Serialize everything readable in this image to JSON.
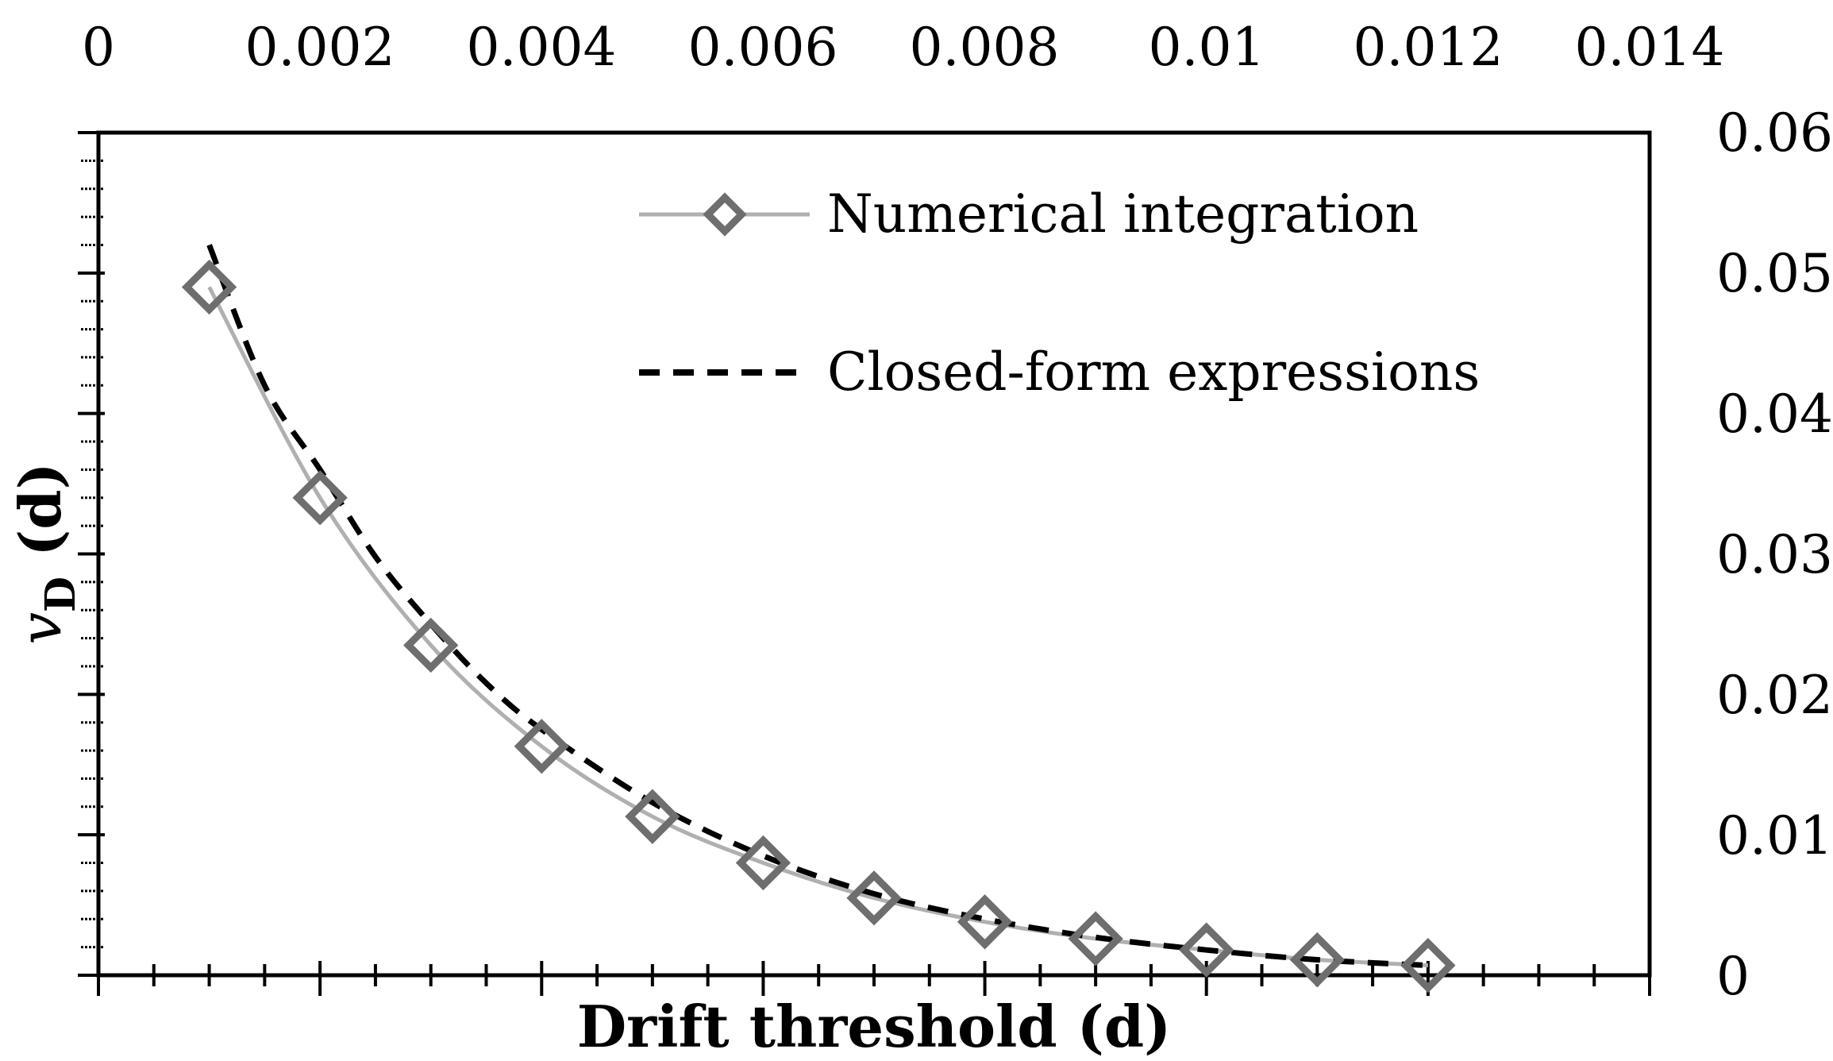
{
  "chart_data": {
    "type": "line",
    "title": "",
    "xlabel": "Drift threshold (d)",
    "ylabel": "v",
    "ylabel_subscript": "D",
    "ylabel_suffix": " (d)",
    "xlim": [
      0,
      0.014
    ],
    "ylim": [
      0,
      0.06
    ],
    "x_tick_labels": [
      "0",
      "0.002",
      "0.004",
      "0.006",
      "0.008",
      "0.01",
      "0.012",
      "0.014"
    ],
    "y_tick_labels": [
      "0",
      "0.01",
      "0.02",
      "0.03",
      "0.04",
      "0.05",
      "0.06"
    ],
    "x_axis_position": "top",
    "y_axis_position": "right",
    "grid": false,
    "legend_position": "top-right",
    "series": [
      {
        "name": "Numerical integration",
        "style": "solid-with-diamond-markers",
        "line_color": "#b0b0b0",
        "marker_color": "#6e6e6e",
        "x": [
          0.001,
          0.002,
          0.003,
          0.004,
          0.005,
          0.006,
          0.007,
          0.008,
          0.009,
          0.01,
          0.011,
          0.012
        ],
        "y": [
          0.049,
          0.034,
          0.0235,
          0.0163,
          0.0113,
          0.008,
          0.0055,
          0.0038,
          0.0026,
          0.0018,
          0.0011,
          0.0007
        ]
      },
      {
        "name": "Closed-form expressions",
        "style": "dashed",
        "line_color": "#000000",
        "x": [
          0.001,
          0.0015,
          0.002,
          0.0025,
          0.003,
          0.0035,
          0.004,
          0.005,
          0.006,
          0.007,
          0.008,
          0.009,
          0.01,
          0.011,
          0.012
        ],
        "y": [
          0.052,
          0.042,
          0.036,
          0.0298,
          0.025,
          0.0208,
          0.0175,
          0.0123,
          0.0085,
          0.0058,
          0.004,
          0.0027,
          0.0018,
          0.0011,
          0.0007
        ]
      }
    ]
  }
}
